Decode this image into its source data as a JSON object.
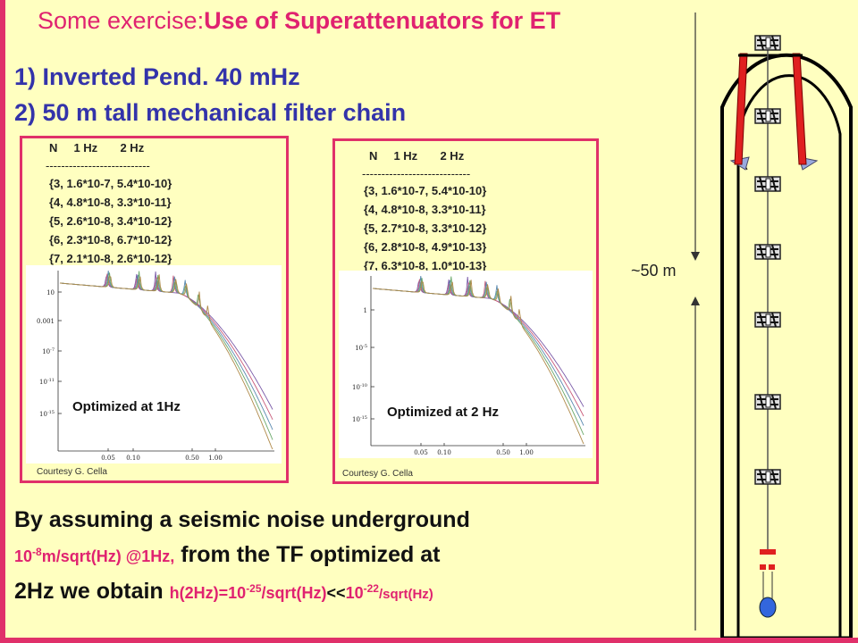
{
  "title": {
    "prefix": "Some exercise:",
    "bold": "Use  of Superattenuators for ET"
  },
  "items": [
    "1) Inverted Pend. 40 mHz",
    "2) 50 m tall mechanical filter chain"
  ],
  "panels": [
    {
      "header": "N     1 Hz       2 Hz",
      "divider": "---------------------------",
      "rows": [
        "{3, 1.6*10-7, 5.4*10-10}",
        "{4, 4.8*10-8, 3.3*10-11}",
        "{5, 2.6*10-8, 3.4*10-12}",
        "{6, 2.3*10-8, 6.7*10-12}",
        "{7, 2.1*10-8, 2.6*10-12}"
      ],
      "optimized": "Optimized at 1Hz",
      "courtesy": "Courtesy G. Cella"
    },
    {
      "header": "N     1 Hz       2 Hz",
      "divider": "----------------------------",
      "rows": [
        "{3, 1.6*10-7, 5.4*10-10}",
        "{4, 4.8*10-8, 3.3*10-11}",
        "{5, 2.7*10-8, 3.3*10-12}",
        "{6, 2.8*10-8, 4.9*10-13}",
        "{7, 6.3*10-8, 1.0*10-13}"
      ],
      "optimized": "Optimized at 2 Hz",
      "courtesy": "Courtesy G. Cella"
    }
  ],
  "plot1": {
    "yticks": [
      "10",
      "0.001",
      "10^-7",
      "10^-11",
      "10^-15"
    ],
    "xticks": [
      "0.05",
      "0.10",
      "0.50",
      "1.00"
    ]
  },
  "plot2": {
    "yticks": [
      "1",
      "10^-5",
      "10^-10",
      "10^-15"
    ],
    "xticks": [
      "0.05",
      "0.10",
      "0.50",
      "1.00"
    ]
  },
  "body": {
    "line1": "By assuming a seismic noise underground",
    "line2_red_base": "10",
    "line2_red_exp": "-8",
    "line2_red_rest": "m/sqrt(Hz) @1Hz,",
    "line2_rest": " from the TF optimized at",
    "line3_a": "2Hz we obtain ",
    "line3_red_a": "h(2Hz)=",
    "line3_red_base": "10",
    "line3_red_exp": "-25",
    "line3_red_mid": "/sqrt(Hz)",
    "line3_lt": "<<",
    "line3_red_base2": "10",
    "line3_red_exp2": "-22",
    "line3_red_end": "/sqrt(Hz)"
  },
  "diagram": {
    "height_label": "~50 m"
  },
  "chart_data": [
    {
      "type": "line",
      "title": "",
      "xlabel": "",
      "ylabel": "",
      "xscale": "log",
      "yscale": "log",
      "xticks": [
        0.05,
        0.1,
        0.5,
        1.0
      ],
      "yticks": [
        "10",
        "0.001",
        "10^-7",
        "10^-11",
        "10^-15"
      ],
      "series_count": 5,
      "annotation": "Optimized at 1Hz"
    },
    {
      "type": "line",
      "title": "",
      "xlabel": "",
      "ylabel": "",
      "xscale": "log",
      "yscale": "log",
      "xticks": [
        0.05,
        0.1,
        0.5,
        1.0
      ],
      "yticks": [
        "1",
        "10^-5",
        "10^-10",
        "10^-15"
      ],
      "series_count": 5,
      "annotation": "Optimized at 2 Hz"
    }
  ]
}
